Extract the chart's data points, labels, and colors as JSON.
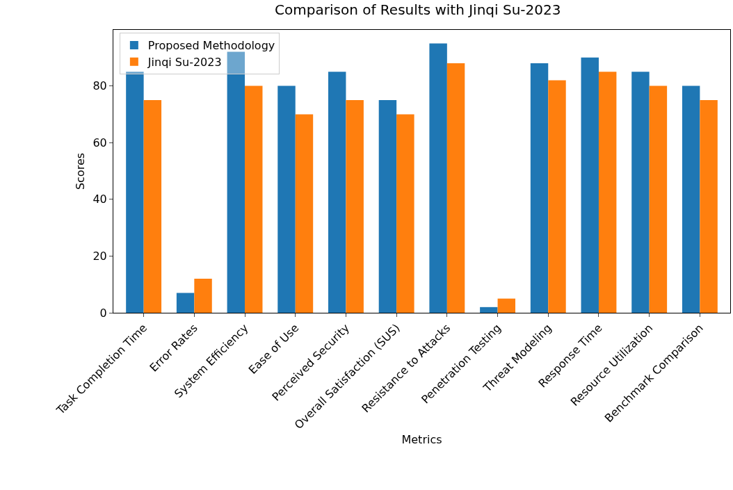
{
  "chart_data": {
    "type": "bar",
    "title": "Comparison of Results with Jinqi Su-2023",
    "xlabel": "Metrics",
    "ylabel": "Scores",
    "categories": [
      "Task Completion Time",
      "Error Rates",
      "System Efficiency",
      "Ease of Use",
      "Perceived Security",
      "Overall Satisfaction (SUS)",
      "Resistance to Attacks",
      "Penetration Testing",
      "Threat Modeling",
      "Response Time",
      "Resource Utilization",
      "Benchmark Comparison"
    ],
    "series": [
      {
        "name": "Proposed Methodology",
        "color": "#1f77b4",
        "values": [
          85,
          7,
          92,
          80,
          85,
          75,
          95,
          2,
          88,
          90,
          85,
          80
        ]
      },
      {
        "name": "Jinqi Su-2023",
        "color": "#ff7f0e",
        "values": [
          75,
          12,
          80,
          70,
          75,
          70,
          88,
          5,
          82,
          85,
          80,
          75
        ]
      }
    ],
    "ylim": [
      0,
      99.75
    ],
    "yticks": [
      0,
      20,
      40,
      60,
      80
    ],
    "grid": false,
    "legend": "top left"
  }
}
